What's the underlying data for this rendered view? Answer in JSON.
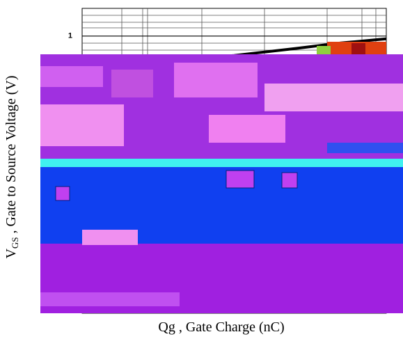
{
  "chart_data": {
    "type": "line",
    "ylabel": {
      "symbol": "V",
      "sub": "GS",
      "text": " , Gate to Source Voltage (V)"
    },
    "xlabel": "Qg , Gate Charge (nC)",
    "xlim": [
      0,
      10
    ],
    "ylim": [
      0,
      1.1
    ],
    "yticks": [
      1
    ],
    "series": [
      {
        "color": "#000000",
        "x": [
          0,
          0.5,
          3,
          5,
          7,
          8.5,
          10
        ],
        "values": [
          0.9,
          0.905,
          0.915,
          0.93,
          0.955,
          0.975,
          0.99
        ]
      }
    ]
  }
}
